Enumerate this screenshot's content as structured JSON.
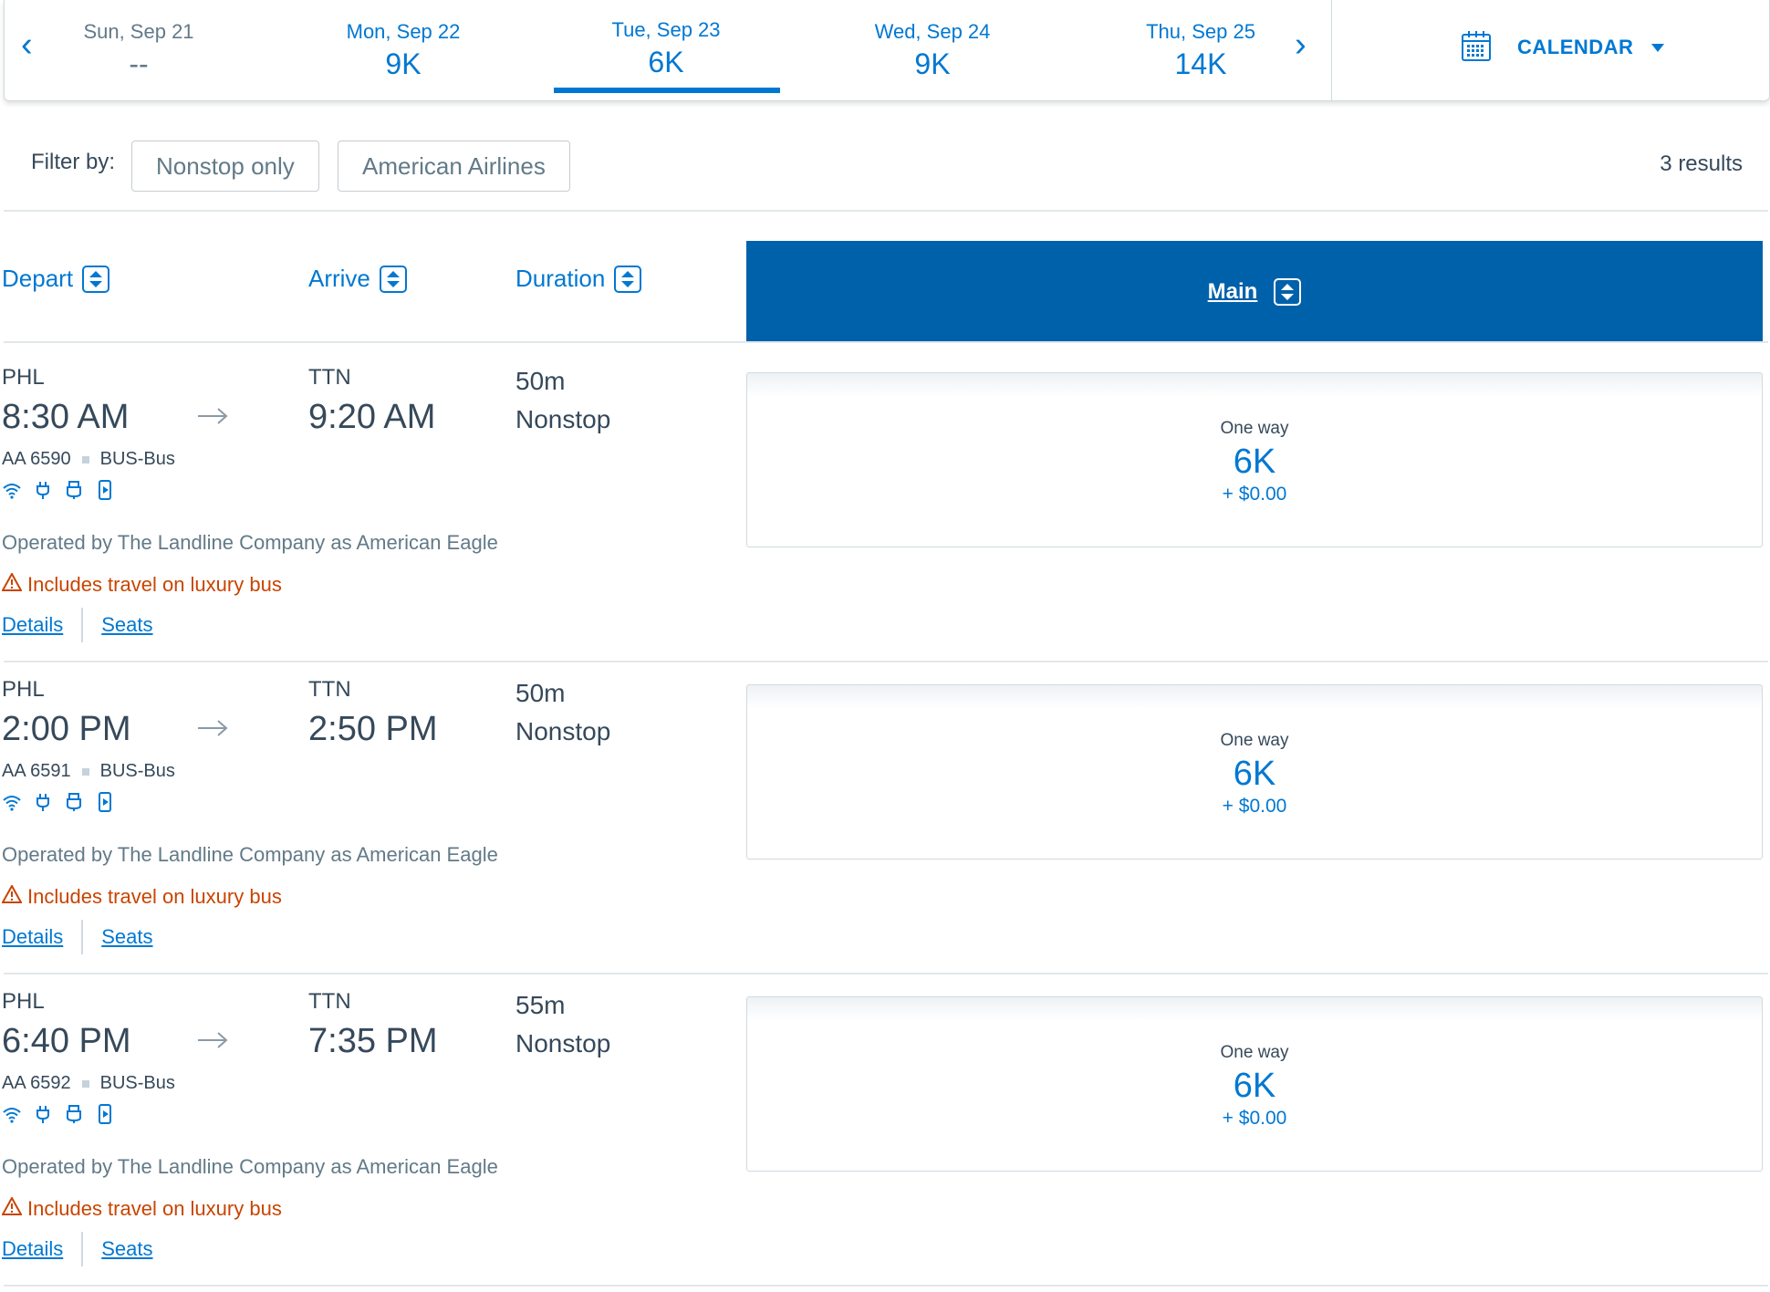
{
  "date_bar": {
    "dates": [
      {
        "day": "Sun, Sep 21",
        "price": "--",
        "state": "disabled"
      },
      {
        "day": "Mon, Sep 22",
        "price": "9K",
        "state": "normal"
      },
      {
        "day": "Tue, Sep 23",
        "price": "6K",
        "state": "selected"
      },
      {
        "day": "Wed, Sep 24",
        "price": "9K",
        "state": "normal"
      },
      {
        "day": "Thu, Sep 25",
        "price": "14K",
        "state": "normal"
      }
    ],
    "calendar_label": "CALENDAR"
  },
  "filters": {
    "label": "Filter by:",
    "chips": [
      "Nonstop only",
      "American Airlines"
    ],
    "results": "3 results"
  },
  "columns": {
    "depart": "Depart",
    "arrive": "Arrive",
    "duration": "Duration",
    "cabin": "Main"
  },
  "flights": [
    {
      "depart_code": "PHL",
      "depart_time": "8:30 AM",
      "arrive_code": "TTN",
      "arrive_time": "9:20 AM",
      "flight_number": "AA 6590",
      "equipment": "BUS-Bus",
      "duration": "50m",
      "stops": "Nonstop",
      "operated_by": "Operated by The Landline Company as American Eagle",
      "warning": "Includes travel on luxury bus",
      "details_link": "Details",
      "seats_link": "Seats",
      "fare": {
        "label": "One way",
        "points": "6K",
        "taxes": "+ $0.00"
      }
    },
    {
      "depart_code": "PHL",
      "depart_time": "2:00 PM",
      "arrive_code": "TTN",
      "arrive_time": "2:50 PM",
      "flight_number": "AA 6591",
      "equipment": "BUS-Bus",
      "duration": "50m",
      "stops": "Nonstop",
      "operated_by": "Operated by The Landline Company as American Eagle",
      "warning": "Includes travel on luxury bus",
      "details_link": "Details",
      "seats_link": "Seats",
      "fare": {
        "label": "One way",
        "points": "6K",
        "taxes": "+ $0.00"
      }
    },
    {
      "depart_code": "PHL",
      "depart_time": "6:40 PM",
      "arrive_code": "TTN",
      "arrive_time": "7:35 PM",
      "flight_number": "AA 6592",
      "equipment": "BUS-Bus",
      "duration": "55m",
      "stops": "Nonstop",
      "operated_by": "Operated by The Landline Company as American Eagle",
      "warning": "Includes travel on luxury bus",
      "details_link": "Details",
      "seats_link": "Seats",
      "fare": {
        "label": "One way",
        "points": "6K",
        "taxes": "+ $0.00"
      }
    }
  ],
  "colors": {
    "accent": "#0078d2",
    "header_bg": "#0061ab",
    "warning": "#c94400",
    "text": "#36495a"
  }
}
